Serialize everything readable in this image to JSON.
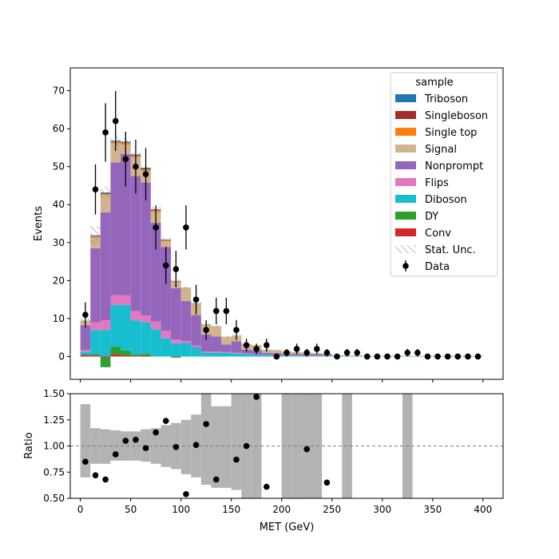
{
  "chart_data": {
    "type": "bar",
    "stacked": true,
    "xlabel": "MET (GeV)",
    "x_ticks": [
      0,
      50,
      100,
      150,
      200,
      250,
      300,
      350,
      400
    ],
    "xlim": [
      -10,
      420
    ],
    "bin_edges": [
      0,
      10,
      20,
      30,
      40,
      50,
      60,
      70,
      80,
      90,
      100,
      110,
      120,
      130,
      140,
      150,
      160,
      170,
      180,
      190,
      200,
      210,
      220,
      230,
      240,
      250,
      260,
      270,
      280,
      290,
      300,
      310,
      320,
      330,
      340,
      350,
      360,
      370,
      380,
      390,
      400
    ],
    "main": {
      "ylabel": "Events",
      "ylim": [
        -6,
        76
      ],
      "y_ticks": [
        0,
        10,
        20,
        30,
        40,
        50,
        60,
        70
      ],
      "legend": {
        "title": "sample",
        "placement": "upper right",
        "entries": [
          "Triboson",
          "Singleboson",
          "Single top",
          "Signal",
          "Nonprompt",
          "Flips",
          "Diboson",
          "DY",
          "Conv",
          "Stat. Unc.",
          "Data"
        ]
      },
      "series": [
        {
          "name": "Conv",
          "color": "#d62728",
          "values": [
            0.3,
            0.3,
            -0.3,
            0.6,
            0.3,
            0.2,
            0.2,
            0,
            0,
            0,
            0,
            0,
            0,
            0,
            0,
            0,
            0,
            0,
            0,
            0,
            0,
            0,
            0,
            0,
            0,
            0,
            0,
            0,
            0,
            0,
            0,
            0,
            0,
            0,
            0,
            0,
            0,
            0,
            0,
            0
          ]
        },
        {
          "name": "DY",
          "color": "#2ca02c",
          "values": [
            0.2,
            0.2,
            -2.5,
            2.0,
            1.3,
            0.3,
            0.5,
            0,
            0,
            -0.3,
            0,
            0,
            0,
            0,
            0,
            0,
            0,
            0,
            0,
            0,
            0,
            0,
            0,
            0,
            0,
            0,
            0,
            0,
            0,
            0,
            0,
            0,
            0,
            0,
            0,
            0,
            0,
            0,
            0,
            0
          ]
        },
        {
          "name": "Diboson",
          "color": "#17becf",
          "values": [
            0.7,
            6.5,
            7.0,
            11.0,
            12.0,
            9.0,
            8.3,
            7.2,
            4.8,
            3.5,
            3.6,
            2.4,
            1.0,
            1.0,
            1.0,
            0.8,
            0.7,
            0.5,
            0.4,
            0.3,
            0.3,
            0.3,
            0.2,
            0.2,
            0.2,
            0.1,
            0.1,
            0.1,
            0.1,
            0.1,
            0.1,
            0.1,
            0.1,
            0.1,
            0.1,
            0.1,
            0.1,
            0.1,
            0.1,
            0.1
          ]
        },
        {
          "name": "Flips",
          "color": "#e377c2",
          "values": [
            0.5,
            2.0,
            2.5,
            2.5,
            2.5,
            2.5,
            1.8,
            2.0,
            2.0,
            1.0,
            0.5,
            0.5,
            0.3,
            0.3,
            0.2,
            0.2,
            0.1,
            0.1,
            0.1,
            0.1,
            0.1,
            0.1,
            0.1,
            0.1,
            0.1,
            0,
            0,
            0,
            0,
            0,
            0,
            0,
            0,
            0,
            0,
            0,
            0,
            0,
            0,
            0
          ]
        },
        {
          "name": "Nonprompt",
          "color": "#9467bd",
          "values": [
            6.5,
            19.5,
            28.5,
            35.0,
            37.2,
            35.5,
            35.0,
            26.0,
            22.0,
            13.5,
            10.5,
            8.0,
            4.5,
            4.0,
            2.0,
            3.0,
            1.0,
            1.0,
            0.5,
            0.5,
            0.3,
            0.3,
            0.3,
            0.3,
            0.2,
            0,
            0,
            0,
            0,
            0,
            0,
            0,
            0,
            0,
            0,
            0,
            0,
            0,
            0,
            0
          ]
        },
        {
          "name": "Signal",
          "color": "#d2b48c",
          "values": [
            1.0,
            2.8,
            4.5,
            5.0,
            2.5,
            5.0,
            3.0,
            2.8,
            1.6,
            1.6,
            3.4,
            3.0,
            2.7,
            2.7,
            2.0,
            1.5,
            1.5,
            1.4,
            0.8,
            0.8,
            0.6,
            0.5,
            0.4,
            0.3,
            0.3,
            0.2,
            0.2,
            0.2,
            0.1,
            0.1,
            0.1,
            0.1,
            0.1,
            0.1,
            0.1,
            0.1,
            0.1,
            0.1,
            0.1,
            0.1
          ]
        },
        {
          "name": "Single top",
          "color": "#ff7f0e",
          "values": [
            0.1,
            0.3,
            0.3,
            0.3,
            0.5,
            0.3,
            0.5,
            0.5,
            0.2,
            0.2,
            0,
            0,
            0,
            0,
            0,
            0,
            0,
            0,
            0,
            0,
            0,
            0,
            0,
            0,
            0,
            0,
            0,
            0,
            0,
            0,
            0,
            0,
            0,
            0,
            0,
            0,
            0,
            0,
            0,
            0
          ]
        },
        {
          "name": "Singleboson",
          "color": "#a62c2c",
          "values": [
            0,
            0.1,
            0.1,
            0.1,
            0.1,
            0.1,
            0.1,
            0.1,
            0.1,
            0,
            0,
            0,
            0,
            0,
            0,
            0,
            0,
            0,
            0,
            0,
            0,
            0,
            0,
            0,
            0,
            0,
            0,
            0,
            0,
            0,
            0,
            0,
            0,
            0,
            0,
            0,
            0,
            0,
            0,
            0
          ]
        },
        {
          "name": "Triboson",
          "color": "#1f77b4",
          "values": [
            0.1,
            0.2,
            0.3,
            0.3,
            0.2,
            0.3,
            0.3,
            0.2,
            0.1,
            0.1,
            0.1,
            0.1,
            0,
            0,
            0,
            0,
            0,
            0,
            0,
            0,
            0,
            0,
            0,
            0,
            0,
            0,
            0,
            0,
            0,
            0,
            0,
            0,
            0,
            0,
            0,
            0,
            0,
            0,
            0,
            0
          ]
        }
      ],
      "stat_unc": [
        0.7,
        2.5,
        1.5,
        1.5,
        0.9,
        0.5,
        0.5,
        0.6,
        0.5,
        0.4,
        0.3,
        0.3,
        0.3,
        0.2,
        0.2,
        0.2,
        0.2,
        0.2,
        0.2,
        0.1,
        0.1,
        0.1,
        0.1,
        0.1,
        0.1,
        0.1,
        0.1,
        0.1,
        0,
        0,
        0,
        0,
        0,
        0,
        0,
        0,
        0,
        0,
        0,
        0
      ],
      "stat_unc_name": "Stat. Unc.",
      "data": {
        "name": "Data",
        "x": [
          5,
          15,
          25,
          35,
          45,
          55,
          65,
          75,
          85,
          95,
          105,
          115,
          125,
          135,
          145,
          155,
          165,
          175,
          185,
          195,
          205,
          215,
          225,
          235,
          245,
          255,
          265,
          275,
          285,
          295,
          305,
          315,
          325,
          335,
          345,
          355,
          365,
          375,
          385,
          395
        ],
        "y": [
          11,
          44,
          59,
          62,
          52,
          50,
          48,
          34,
          24,
          23,
          34,
          15,
          7,
          12,
          12,
          7,
          3,
          2,
          3,
          0,
          1,
          2,
          1,
          2,
          1,
          0,
          1,
          1,
          0,
          0,
          0,
          0,
          1,
          1,
          0,
          0,
          0,
          0,
          0,
          0
        ],
        "err": [
          3.3,
          6.6,
          7.7,
          7.9,
          7.2,
          7.1,
          6.9,
          5.8,
          4.9,
          4.8,
          5.8,
          3.9,
          2.6,
          3.5,
          3.5,
          2.6,
          1.7,
          1.4,
          1.7,
          0,
          1,
          1.4,
          1,
          1.4,
          1,
          0,
          1,
          1,
          0,
          0,
          0,
          0,
          1,
          1,
          0,
          0,
          0,
          0,
          0,
          0
        ],
        "color": "#000000"
      }
    },
    "ratio": {
      "ylabel": "Ratio",
      "ylim": [
        0.5,
        1.5
      ],
      "y_ticks": [
        "0.50",
        "0.75",
        "1.00",
        "1.25",
        "1.50"
      ],
      "reference_line": 1.0,
      "band_color": "#b3b3b3",
      "band_low": [
        0.7,
        0.83,
        0.83,
        0.86,
        0.86,
        0.86,
        0.85,
        0.83,
        0.8,
        0.78,
        0.73,
        0.7,
        0.63,
        0.6,
        0.6,
        0.58,
        0.5,
        0.5,
        null,
        null,
        0.5,
        0.5,
        0.5,
        0.5,
        null,
        null,
        0.5,
        null,
        null,
        null,
        null,
        null,
        0.5,
        null,
        null,
        null,
        null,
        null,
        null,
        null
      ],
      "band_high": [
        1.4,
        1.17,
        1.16,
        1.15,
        1.14,
        1.14,
        1.16,
        1.17,
        1.2,
        1.22,
        1.25,
        1.3,
        1.5,
        1.38,
        1.38,
        1.5,
        1.5,
        1.5,
        null,
        null,
        1.5,
        1.5,
        1.5,
        1.5,
        null,
        null,
        1.5,
        null,
        null,
        null,
        null,
        null,
        1.5,
        null,
        null,
        null,
        null,
        null,
        null,
        null
      ],
      "points": {
        "x": [
          5,
          15,
          25,
          35,
          45,
          55,
          65,
          75,
          85,
          95,
          105,
          115,
          125,
          135,
          155,
          165,
          175,
          185,
          225,
          245
        ],
        "y": [
          0.85,
          0.72,
          0.68,
          0.92,
          1.05,
          1.06,
          0.98,
          1.13,
          1.24,
          0.99,
          0.54,
          1.01,
          1.21,
          0.68,
          0.87,
          1.0,
          1.47,
          0.61,
          0.97,
          0.65
        ]
      }
    }
  }
}
